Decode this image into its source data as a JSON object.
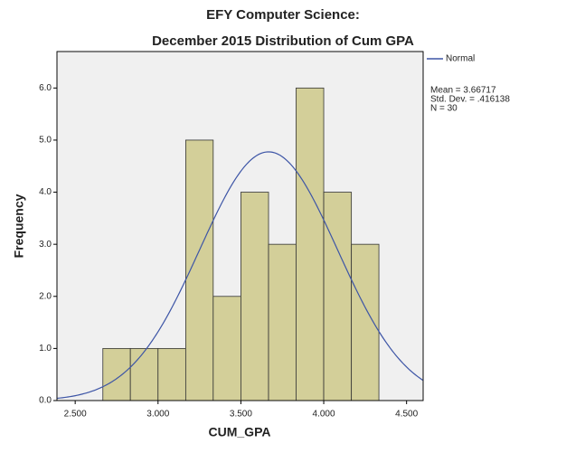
{
  "chart_data": {
    "type": "histogram",
    "title": "EFY Computer Science:",
    "subtitle": "December 2015 Distribution of Cum GPA",
    "x_label": "CUM_GPA",
    "y_label": "Frequency",
    "bins": [
      2.667,
      2.833,
      3.0,
      3.167,
      3.333,
      3.5,
      3.667,
      3.833,
      4.0,
      4.167,
      4.333
    ],
    "values": [
      1,
      1,
      1,
      5,
      2,
      4,
      3,
      6,
      4,
      3
    ],
    "color": "#d3cf99",
    "xlim": [
      2.39,
      4.6
    ],
    "ylim": [
      0,
      6.7
    ],
    "xticks": [
      {
        "value": 2.5,
        "label": "2.500"
      },
      {
        "value": 3.0,
        "label": "3.000"
      },
      {
        "value": 3.5,
        "label": "3.500"
      },
      {
        "value": 4.0,
        "label": "4.000"
      },
      {
        "value": 4.5,
        "label": "4.500"
      }
    ],
    "yticks": [
      {
        "value": 0,
        "label": "0.0"
      },
      {
        "value": 1,
        "label": "1.0"
      },
      {
        "value": 2,
        "label": "2.0"
      },
      {
        "value": 3,
        "label": "3.0"
      },
      {
        "value": 4,
        "label": "4.0"
      },
      {
        "value": 5,
        "label": "5.0"
      },
      {
        "value": 6,
        "label": "6.0"
      }
    ],
    "normal": {
      "name": "Normal",
      "color": "#3d55a6",
      "mean": {
        "value": 3.66717,
        "label": "Mean = 3.66717"
      },
      "sd": {
        "value": 0.416138,
        "label": "Std. Dev. = .416138"
      },
      "n": {
        "value": 30,
        "label": "N = 30"
      }
    }
  }
}
